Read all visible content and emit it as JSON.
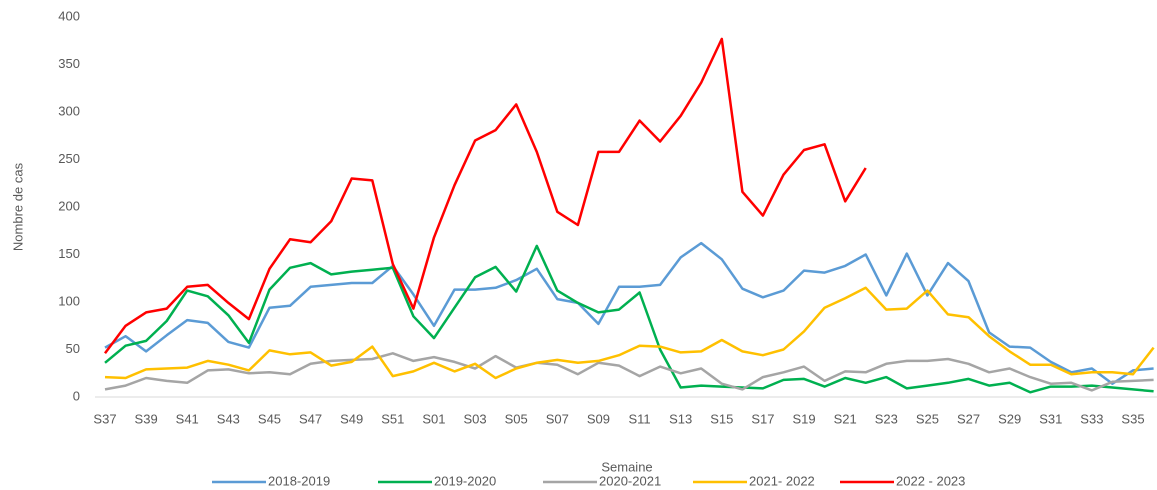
{
  "chart_data": {
    "type": "line",
    "x_label": "Semaine",
    "y_label": "Nombre de cas",
    "categories": [
      "S37",
      null,
      "S39",
      null,
      "S41",
      null,
      "S43",
      null,
      "S45",
      null,
      "S47",
      null,
      "S49",
      null,
      "S51",
      null,
      "S01",
      null,
      "S03",
      null,
      "S05",
      null,
      "S07",
      null,
      "S09",
      null,
      "S11",
      null,
      "S13",
      null,
      "S15",
      null,
      "S17",
      null,
      "S19",
      null,
      "S21",
      null,
      "S23",
      null,
      "S25",
      null,
      "S27",
      null,
      "S29",
      null,
      "S31",
      null,
      "S33",
      null,
      "S35",
      null
    ],
    "ylim": [
      0,
      400
    ],
    "yticks": [
      0,
      50,
      100,
      150,
      200,
      250,
      300,
      350,
      400
    ],
    "legend": "bottom",
    "series": [
      {
        "name": "2018-2019",
        "color": "#5b9bd5",
        "values": [
          52,
          64,
          48,
          65,
          81,
          78,
          58,
          52,
          94,
          96,
          116,
          118,
          120,
          120,
          138,
          108,
          75,
          113,
          113,
          115,
          123,
          135,
          103,
          99,
          77,
          116,
          116,
          118,
          147,
          162,
          145,
          114,
          105,
          112,
          133,
          131,
          138,
          150,
          107,
          151,
          107,
          141,
          122,
          68,
          53,
          52,
          37,
          26,
          30,
          14,
          28,
          30
        ]
      },
      {
        "name": "2019-2020",
        "color": "#00b050",
        "values": [
          36,
          54,
          59,
          80,
          112,
          106,
          86,
          57,
          113,
          136,
          141,
          129,
          132,
          134,
          136,
          85,
          62,
          94,
          126,
          137,
          111,
          159,
          112,
          99,
          89,
          92,
          110,
          50,
          10,
          12,
          11,
          10,
          9,
          18,
          19,
          11,
          20,
          15,
          21,
          9,
          12,
          15,
          19,
          12,
          15,
          5,
          11,
          11,
          12,
          10,
          8,
          6
        ]
      },
      {
        "name": "2020-2021",
        "color": "#a5a5a5",
        "values": [
          8,
          12,
          20,
          17,
          15,
          28,
          29,
          25,
          26,
          24,
          35,
          38,
          39,
          40,
          46,
          38,
          42,
          37,
          30,
          43,
          31,
          36,
          34,
          24,
          36,
          33,
          22,
          32,
          25,
          30,
          14,
          8,
          21,
          26,
          32,
          17,
          27,
          26,
          35,
          38,
          38,
          40,
          35,
          26,
          30,
          21,
          14,
          15,
          7,
          16,
          17,
          18
        ]
      },
      {
        "name": "2021- 2022",
        "color": "#ffc000",
        "values": [
          21,
          20,
          29,
          30,
          31,
          38,
          34,
          28,
          49,
          45,
          47,
          33,
          37,
          53,
          22,
          27,
          36,
          27,
          35,
          20,
          30,
          36,
          39,
          36,
          38,
          44,
          54,
          53,
          47,
          48,
          60,
          48,
          44,
          50,
          69,
          94,
          104,
          115,
          92,
          93,
          112,
          87,
          84,
          64,
          48,
          34,
          34,
          24,
          26,
          26,
          24,
          52
        ]
      },
      {
        "name": "2022 - 2023",
        "color": "#ff0000",
        "values": [
          46,
          75,
          89,
          93,
          116,
          118,
          99,
          82,
          135,
          166,
          163,
          185,
          230,
          228,
          140,
          93,
          168,
          223,
          270,
          281,
          308,
          258,
          195,
          181,
          258,
          258,
          291,
          269,
          296,
          331,
          377,
          216,
          191,
          234,
          260,
          266,
          206,
          241,
          null,
          null,
          null,
          null,
          null,
          null,
          null,
          null,
          null,
          null,
          null,
          null,
          null,
          null
        ]
      }
    ]
  }
}
